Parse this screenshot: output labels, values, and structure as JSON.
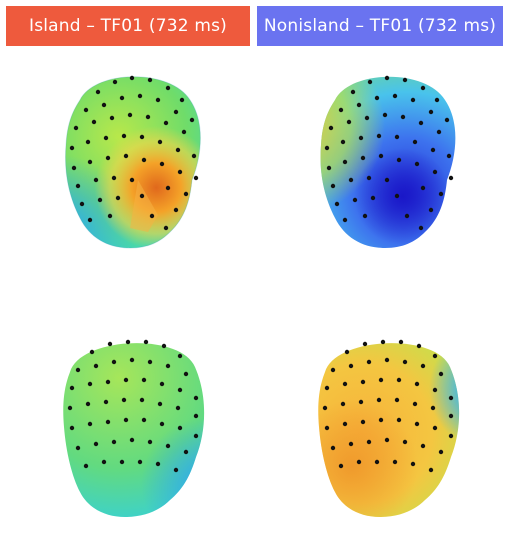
{
  "headers": {
    "left": "Island – TF01 (732 ms)",
    "right": "Nonisland – TF01 (732 ms)"
  },
  "colors": {
    "island_header": "#ee5a3d",
    "nonisland_header": "#6a73f0",
    "electrode": "#111111"
  },
  "panels": [
    {
      "condition": "island",
      "view": "front",
      "colormap_dominant": [
        "green",
        "cyan",
        "orange-hotspot-right-face"
      ]
    },
    {
      "condition": "nonisland",
      "view": "front",
      "colormap_dominant": [
        "blue",
        "cyan",
        "yellow-left"
      ]
    },
    {
      "condition": "island",
      "view": "back",
      "colormap_dominant": [
        "green",
        "cyan"
      ]
    },
    {
      "condition": "nonisland",
      "view": "back",
      "colormap_dominant": [
        "orange",
        "yellow",
        "green",
        "blue-right-edge"
      ]
    }
  ]
}
